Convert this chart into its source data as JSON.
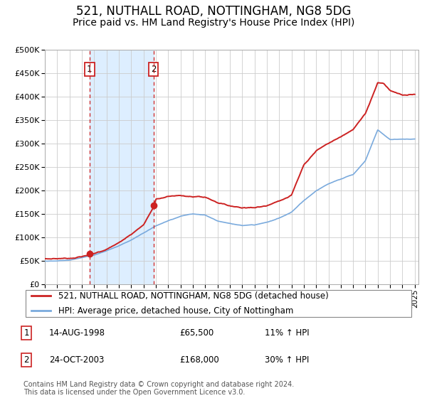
{
  "title": "521, NUTHALL ROAD, NOTTINGHAM, NG8 5DG",
  "subtitle": "Price paid vs. HM Land Registry's House Price Index (HPI)",
  "legend1": "521, NUTHALL ROAD, NOTTINGHAM, NG8 5DG (detached house)",
  "legend2": "HPI: Average price, detached house, City of Nottingham",
  "purchase1_table": "14-AUG-1998",
  "purchase1_price_str": "£65,500",
  "purchase1_price": 65500,
  "purchase1_hpi": "11% ↑ HPI",
  "purchase1_year": 1998.625,
  "purchase2_table": "24-OCT-2003",
  "purchase2_price_str": "£168,000",
  "purchase2_price": 168000,
  "purchase2_hpi": "30% ↑ HPI",
  "purchase2_year": 2003.81,
  "footnote": "Contains HM Land Registry data © Crown copyright and database right 2024.\nThis data is licensed under the Open Government Licence v3.0.",
  "line_color_property": "#cc2222",
  "line_color_hpi": "#7aaadd",
  "shade_color": "#ddeeff",
  "grid_color": "#cccccc",
  "background_color": "#ffffff",
  "ylim": [
    0,
    500000
  ],
  "yticks": [
    0,
    50000,
    100000,
    150000,
    200000,
    250000,
    300000,
    350000,
    400000,
    450000,
    500000
  ],
  "xlim_start": 1995,
  "xlim_end": 2025.3,
  "title_fontsize": 12,
  "subtitle_fontsize": 10,
  "axis_fontsize": 8,
  "footnote_fontsize": 7
}
